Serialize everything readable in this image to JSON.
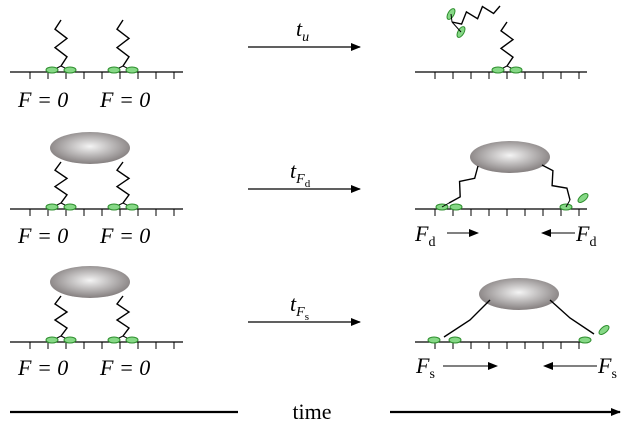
{
  "rows": [
    {
      "left_labels": [
        "F = 0",
        "F = 0"
      ],
      "arrow_label": {
        "base": "t",
        "sub": "u"
      }
    },
    {
      "left_labels": [
        "F = 0",
        "F = 0"
      ],
      "arrow_label": {
        "base": "t",
        "sub": "F",
        "subsub": "d"
      },
      "right_labels": [
        {
          "base": "F",
          "sub": "d"
        },
        {
          "base": "F",
          "sub": "d"
        }
      ]
    },
    {
      "left_labels": [
        "F = 0",
        "F = 0"
      ],
      "arrow_label": {
        "base": "t",
        "sub": "F",
        "subsub": "s"
      },
      "right_labels": [
        {
          "base": "F",
          "sub": "s"
        },
        {
          "base": "F",
          "sub": "s"
        }
      ]
    }
  ],
  "time_label": "time"
}
